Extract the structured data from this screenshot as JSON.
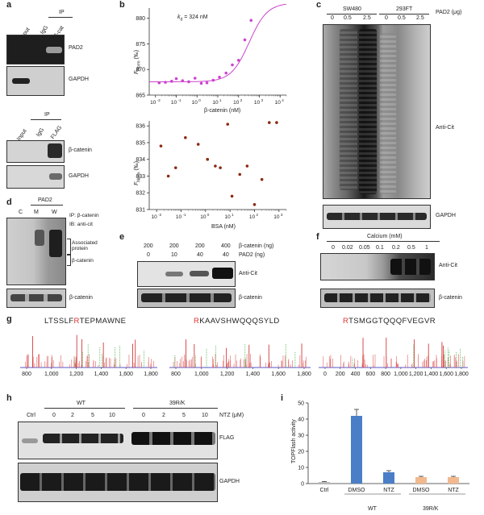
{
  "panels": {
    "a": {
      "label": "a",
      "top": {
        "ip_header": "IP",
        "columns": [
          "Input",
          "IgG",
          "β-cat"
        ],
        "rows": [
          "PAD2",
          "GAPDH"
        ]
      },
      "bottom": {
        "ip_header": "IP",
        "columns": [
          "Input",
          "IgG",
          "FLAG"
        ],
        "rows": [
          "β-catenin",
          "GAPDH"
        ]
      }
    },
    "b": {
      "label": "b",
      "kd_prefix": "k",
      "kd_sub": "d",
      "kd_value": " = 324 nM",
      "top_ylabel": "F",
      "top_ylabel_sub": "Norm",
      "top_ylabel_unit": "(‰)",
      "top_xlabel": "β-catenin (nM)",
      "bottom_ylabel": "F",
      "bottom_ylabel_sub": "Norm",
      "bottom_ylabel_unit": "(‰)",
      "bottom_xlabel": "BSA (nM)"
    },
    "c": {
      "label": "c",
      "cell_lines": [
        "SW480",
        "293FT"
      ],
      "doses": [
        "0",
        "0.5",
        "2.5",
        "0",
        "0.5",
        "2.5"
      ],
      "dose_label": "PAD2 (μg)",
      "rows": [
        "Anti-Cit",
        "GAPDH"
      ]
    },
    "d": {
      "label": "d",
      "header": "PAD2",
      "columns": [
        "C",
        "M",
        "W"
      ],
      "legend_ip": "IP: β-catenin",
      "legend_ib": "IB: anti-cit",
      "bracket1": "Associated protein",
      "bracket2": "β-catenin",
      "bottom_row": "β-catenin"
    },
    "e": {
      "label": "e",
      "beta_cat_amounts": [
        "200",
        "200",
        "200",
        "400"
      ],
      "beta_cat_label": "β-catenin (ng)",
      "pad2_amounts": [
        "0",
        "10",
        "40",
        "40"
      ],
      "pad2_label": "PAD2 (ng)",
      "rows": [
        "Anti-Cit",
        "β-catenin"
      ]
    },
    "f": {
      "label": "f",
      "header": "Calcium (mM)",
      "concentrations": [
        "0",
        "0.02",
        "0.05",
        "0.1",
        "0.2",
        "0.5",
        "1"
      ],
      "rows": [
        "Anti-Cit",
        "β-catenin"
      ]
    },
    "g": {
      "label": "g",
      "peptides": [
        {
          "pre": "LTSSLF",
          "red": "R",
          "post": "TEPMAWNE"
        },
        {
          "pre": "",
          "red": "R",
          "post": "KAAVSHWQQQSYLD"
        },
        {
          "pre": "",
          "red": "R",
          "post": "TSMGGTQQQFVEGVR"
        }
      ],
      "spectrum1_ticks": [
        "800",
        "1,000",
        "1,200",
        "1,400",
        "1,600",
        "1,800"
      ],
      "spectrum2_ticks": [
        "800",
        "1,000",
        "1,200",
        "1,400",
        "1,600",
        "1,800"
      ],
      "spectrum3_ticks": [
        "0",
        "200",
        "400",
        "600",
        "800",
        "1,000",
        "1,200",
        "1,400",
        "1,600",
        "1,800"
      ]
    },
    "h": {
      "label": "h",
      "groups": [
        "Ctrl",
        "WT",
        "39R/K"
      ],
      "time_points": [
        "0",
        "2",
        "5",
        "10",
        "0",
        "2",
        "5",
        "10"
      ],
      "ntz_label": "NTZ (μM)",
      "rows": [
        "FLAG",
        "GAPDH"
      ]
    },
    "i": {
      "label": "i",
      "ylabel": "TOPFlash activity",
      "group_labels": [
        "WT",
        "39R/K"
      ]
    }
  },
  "chart_data": [
    {
      "type": "scatter",
      "panel": "b-top",
      "xlabel": "β-catenin (nM)",
      "ylabel": "FNorm (‰)",
      "x_scale": "log",
      "xlim": [
        0.005,
        20000
      ],
      "ylim": [
        865,
        882
      ],
      "x_ticks": [
        "10^-2",
        "10^-1",
        "10^0",
        "10^1",
        "10^2",
        "10^3",
        "10^4"
      ],
      "y_ticks": [
        865,
        870,
        875,
        880
      ],
      "color": "#cc44cc",
      "x": [
        0.015,
        0.03,
        0.06,
        0.1,
        0.2,
        0.4,
        0.8,
        1.6,
        3,
        6,
        12,
        25,
        50,
        100,
        200,
        400
      ],
      "y": [
        867.4,
        867.5,
        867.7,
        868.2,
        867.8,
        867.6,
        868.3,
        867.3,
        867.4,
        867.9,
        868.5,
        869.3,
        870.9,
        871.8,
        875.8,
        879.6
      ],
      "fit": {
        "type": "binding",
        "kd": 324,
        "min": 867.6,
        "max": 883
      }
    },
    {
      "type": "scatter",
      "panel": "b-bottom",
      "xlabel": "BSA (nM)",
      "ylabel": "FNorm (‰)",
      "x_scale": "log",
      "xlim": [
        0.005,
        2000
      ],
      "ylim": [
        831,
        836.3
      ],
      "x_ticks": [
        "10^-2",
        "10^-1",
        "10^0",
        "10^1",
        "10^2",
        "10^3"
      ],
      "y_ticks": [
        831,
        832,
        833,
        834,
        835,
        836
      ],
      "color": "#8b2a10",
      "x": [
        0.015,
        0.03,
        0.06,
        0.15,
        0.5,
        1.2,
        2.5,
        4,
        8,
        12,
        25,
        50,
        100,
        200,
        400,
        800
      ],
      "y": [
        834.8,
        833,
        833.5,
        835.3,
        834.9,
        834,
        833.6,
        833.5,
        836.1,
        831.8,
        833.1,
        833.6,
        831.3,
        832.8,
        836.2,
        836.2
      ]
    },
    {
      "type": "bar",
      "panel": "i",
      "ylabel": "TOPFlash activity",
      "categories": [
        "Ctrl",
        "DMSO",
        "NTZ",
        "DMSO",
        "NTZ"
      ],
      "values": [
        1,
        42,
        7,
        4,
        4
      ],
      "errors": [
        0.3,
        4,
        1,
        0.5,
        0.5
      ],
      "ylim": [
        0,
        50
      ],
      "y_ticks": [
        0,
        10,
        20,
        30,
        40,
        50
      ],
      "colors": [
        "#bcbcbc",
        "#4a7fc7",
        "#4a7fc7",
        "#f2b98f",
        "#f2b98f"
      ]
    }
  ]
}
